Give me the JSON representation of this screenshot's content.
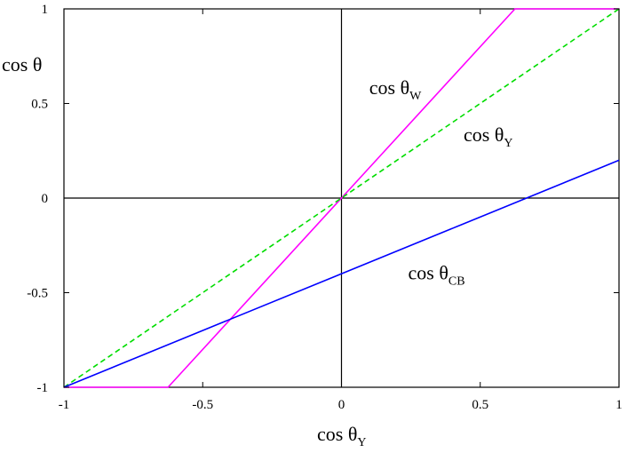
{
  "chart_data": {
    "type": "line",
    "xlabel": "cos θ",
    "xlabel_sub": "Y",
    "ylabel": "cos θ",
    "xlim": [
      -1,
      1
    ],
    "ylim": [
      -1,
      1
    ],
    "x_ticks": [
      -1,
      -0.5,
      0,
      0.5,
      1
    ],
    "y_ticks": [
      -1,
      -0.5,
      0,
      0.5,
      1
    ],
    "x_tick_labels": [
      "-1",
      "-0.5",
      "0",
      "0.5",
      "1"
    ],
    "y_tick_labels": [
      "-1",
      "-0.5",
      "0",
      "0.5",
      "1"
    ],
    "zero_lines": true,
    "grid": false,
    "series": [
      {
        "name": "cos θ",
        "name_sub": "W",
        "color": "#ff00ff",
        "style": "solid",
        "points": [
          [
            -1,
            -1
          ],
          [
            -0.625,
            -1
          ],
          [
            0,
            0
          ],
          [
            0.625,
            1
          ],
          [
            1,
            1
          ]
        ],
        "label_at": [
          0.1,
          0.55
        ]
      },
      {
        "name": "cos θ",
        "name_sub": "Y",
        "color": "#00dd00",
        "style": "dashed",
        "points": [
          [
            -1,
            -1
          ],
          [
            1,
            1
          ]
        ],
        "label_at": [
          0.44,
          0.3
        ]
      },
      {
        "name": "cos θ",
        "name_sub": "CB",
        "color": "#0000ff",
        "style": "solid",
        "points": [
          [
            -1,
            -1
          ],
          [
            1,
            0.2
          ]
        ],
        "label_at": [
          0.24,
          -0.43
        ]
      }
    ]
  }
}
